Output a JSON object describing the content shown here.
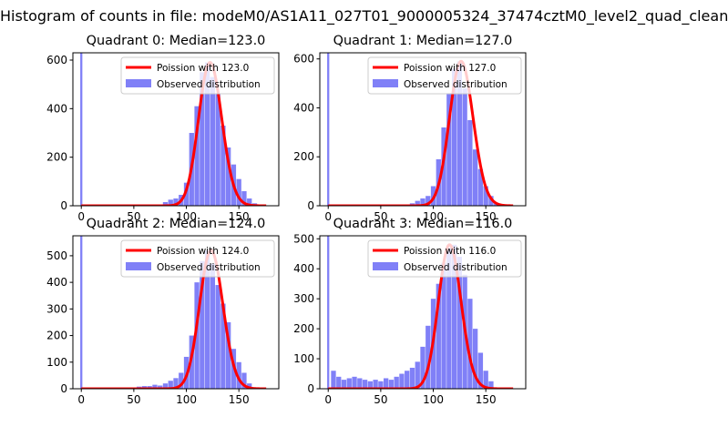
{
  "suptitle": "Histogram of counts in file: modeM0/AS1A11_027T01_9000005324_37474cztM0_level2_quad_clean",
  "colors": {
    "hist_fill": "#8080f7",
    "poisson_line": "#ff0000",
    "axes": "#000000",
    "background": "#ffffff"
  },
  "chart_data": [
    {
      "type": "bar",
      "title": "Quadrant 0: Median=123.0",
      "median": 123,
      "xlim": [
        -8,
        188
      ],
      "ylim": [
        0,
        630
      ],
      "xticks": [
        0,
        50,
        100,
        150
      ],
      "yticks": [
        0,
        200,
        400,
        600
      ],
      "legend": {
        "placement": "upper-right",
        "entries": [
          "Poission with 123.0",
          "Observed distribution"
        ]
      },
      "spike": {
        "x": 0,
        "value": 630
      },
      "hist_x": [
        75,
        80,
        85,
        90,
        95,
        100,
        105,
        110,
        115,
        120,
        125,
        130,
        135,
        140,
        145,
        150,
        155,
        160,
        165,
        170
      ],
      "hist_values": [
        5,
        15,
        25,
        30,
        45,
        95,
        300,
        410,
        550,
        590,
        530,
        460,
        330,
        240,
        170,
        110,
        60,
        30,
        10,
        5
      ]
    },
    {
      "type": "bar",
      "title": "Quadrant 1: Median=127.0",
      "median": 127,
      "xlim": [
        -8,
        188
      ],
      "ylim": [
        0,
        625
      ],
      "xticks": [
        0,
        50,
        100,
        150
      ],
      "yticks": [
        0,
        200,
        400,
        600
      ],
      "legend": {
        "placement": "upper-right",
        "entries": [
          "Poission with 127.0",
          "Observed distribution"
        ]
      },
      "spike": {
        "x": 0,
        "value": 625
      },
      "hist_x": [
        80,
        85,
        90,
        95,
        100,
        105,
        110,
        115,
        120,
        125,
        130,
        135,
        140,
        145,
        150,
        155,
        160
      ],
      "hist_values": [
        10,
        20,
        30,
        40,
        80,
        190,
        320,
        460,
        560,
        590,
        480,
        350,
        230,
        150,
        80,
        40,
        10
      ]
    },
    {
      "type": "bar",
      "title": "Quadrant 2: Median=124.0",
      "median": 124,
      "xlim": [
        -8,
        188
      ],
      "ylim": [
        0,
        575
      ],
      "xticks": [
        0,
        50,
        100,
        150
      ],
      "yticks": [
        0,
        100,
        200,
        300,
        400,
        500
      ],
      "legend": {
        "placement": "upper-right",
        "entries": [
          "Poission with 124.0",
          "Observed distribution"
        ]
      },
      "spike": {
        "x": 0,
        "value": 575
      },
      "hist_x": [
        50,
        55,
        60,
        65,
        70,
        75,
        80,
        85,
        90,
        95,
        100,
        105,
        110,
        115,
        120,
        125,
        130,
        135,
        140,
        145,
        150,
        155,
        160
      ],
      "hist_values": [
        5,
        8,
        10,
        10,
        15,
        12,
        20,
        30,
        40,
        60,
        120,
        200,
        400,
        480,
        520,
        470,
        390,
        320,
        250,
        150,
        100,
        60,
        20
      ]
    },
    {
      "type": "bar",
      "title": "Quadrant 3: Median=116.0",
      "median": 116,
      "xlim": [
        -8,
        188
      ],
      "ylim": [
        0,
        510
      ],
      "xticks": [
        0,
        50,
        100,
        150
      ],
      "yticks": [
        0,
        100,
        200,
        300,
        400,
        500
      ],
      "legend": {
        "placement": "upper-right",
        "entries": [
          "Poission with 116.0",
          "Observed distribution"
        ]
      },
      "spike": {
        "x": 0,
        "value": 510
      },
      "hist_x": [
        5,
        10,
        15,
        20,
        25,
        30,
        35,
        40,
        45,
        50,
        55,
        60,
        65,
        70,
        75,
        80,
        85,
        90,
        95,
        100,
        105,
        110,
        115,
        120,
        125,
        130,
        135,
        140,
        145,
        150,
        155
      ],
      "hist_values": [
        60,
        40,
        30,
        35,
        40,
        35,
        30,
        25,
        30,
        25,
        35,
        30,
        40,
        50,
        60,
        70,
        90,
        140,
        210,
        300,
        350,
        420,
        470,
        480,
        440,
        380,
        300,
        200,
        120,
        60,
        25
      ]
    }
  ]
}
